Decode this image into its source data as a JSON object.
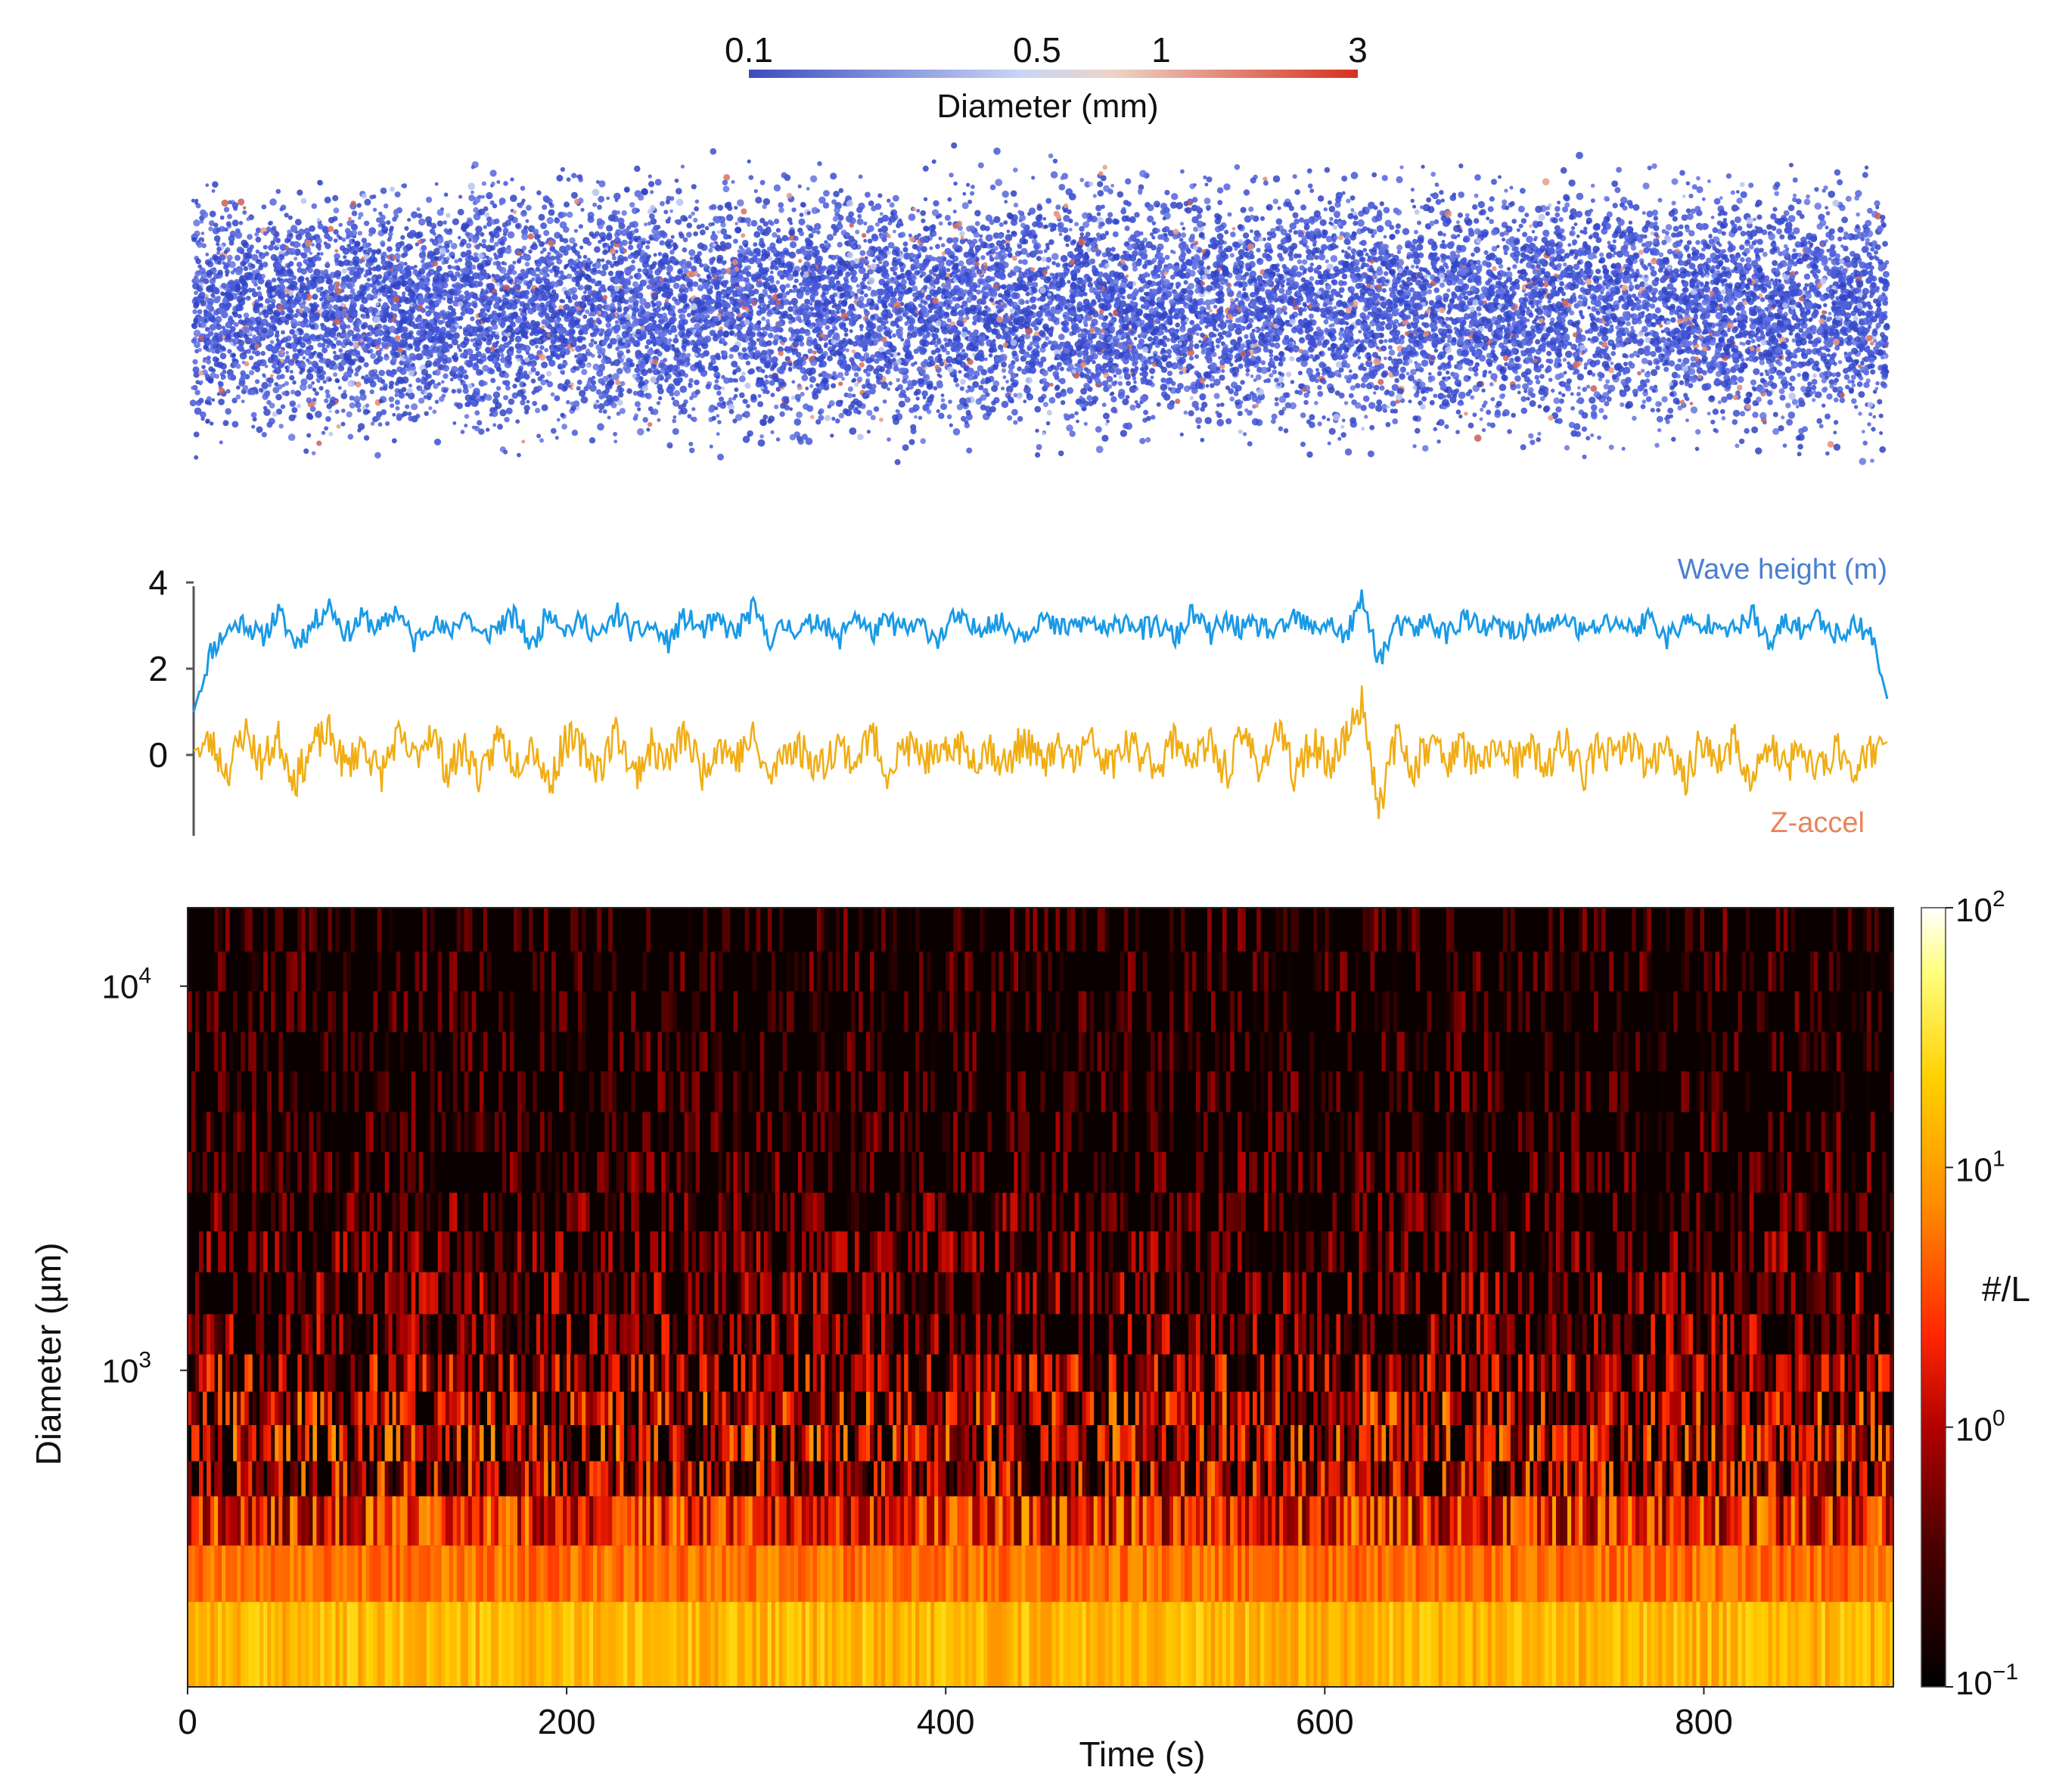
{
  "figure": {
    "panels": [
      "particle-cloud",
      "wave-timeseries",
      "size-spectrogram"
    ]
  },
  "chart_data": [
    {
      "type": "scatter",
      "panel": "particle-cloud",
      "colorbar": {
        "label": "Diameter (mm)",
        "ticks": [
          "0.1",
          "0.5",
          "1",
          "3"
        ],
        "tick_values": [
          0.1,
          0.5,
          1,
          3
        ],
        "scale": "log",
        "colors": [
          "#3b4cc0",
          "#c6d4f5",
          "#e9c1ad",
          "#d7301f"
        ]
      },
      "points": {
        "approx_count": 14000,
        "dominant_color": "#4455d6",
        "note_color_large": "#e0826a"
      }
    },
    {
      "type": "line",
      "panel": "wave-timeseries",
      "x_range": [
        0,
        900
      ],
      "ylim": [
        -1.8,
        4
      ],
      "yticks": [
        "4",
        "2",
        "0"
      ],
      "ytick_values": [
        4,
        2,
        0
      ],
      "series": [
        {
          "name": "Wave height (m)",
          "color": "#1a9ae6",
          "label_color": "#4a7fcf",
          "values": [
            1.0,
            2.4,
            2.9,
            3.1,
            2.7,
            3.3,
            2.6,
            3.0,
            3.5,
            2.8,
            3.2,
            2.9,
            3.4,
            2.6,
            3.1,
            2.8,
            3.3,
            2.7,
            3.0,
            3.2,
            2.5,
            3.4,
            2.9,
            3.1,
            2.7,
            3.3,
            2.8,
            3.0,
            2.6,
            3.2,
            2.9,
            3.1,
            2.8,
            3.4,
            2.7,
            3.0,
            2.9,
            3.2,
            2.6,
            3.3,
            2.8,
            3.1,
            2.9,
            3.0,
            2.7,
            3.2,
            2.9,
            3.1,
            3.0,
            2.8,
            3.2,
            2.9,
            3.0,
            3.1,
            2.8,
            3.2,
            2.9,
            3.0,
            2.7,
            3.3,
            2.8,
            3.1,
            2.9,
            3.0,
            2.8,
            3.2,
            2.9,
            3.1,
            2.7,
            3.6,
            2.2,
            3.0,
            2.9,
            3.1,
            2.8,
            3.2,
            2.9,
            3.0,
            2.8,
            3.1,
            2.9,
            3.2,
            2.8,
            3.0,
            3.1,
            2.9,
            3.2,
            2.7,
            3.1,
            2.9,
            3.2,
            2.8,
            3.3,
            2.5,
            3.1,
            2.9,
            3.2,
            2.8,
            3.0,
            2.9,
            1.3
          ]
        },
        {
          "name": "Z-accel",
          "color": "#f0ad14",
          "label_color": "#e8845a",
          "values": [
            0.1,
            0.3,
            -0.4,
            0.6,
            -0.2,
            0.4,
            -0.6,
            0.2,
            0.5,
            -0.3,
            0.3,
            -0.5,
            0.4,
            -0.1,
            0.6,
            -0.4,
            0.2,
            -0.6,
            0.5,
            -0.2,
            0.3,
            -0.7,
            0.4,
            0.1,
            -0.3,
            0.6,
            -0.5,
            0.2,
            -0.2,
            0.5,
            -0.4,
            0.3,
            -0.1,
            0.4,
            -0.6,
            0.2,
            0.1,
            -0.3,
            0.3,
            -0.2,
            0.5,
            -0.4,
            0.2,
            0.0,
            -0.2,
            0.3,
            -0.1,
            0.2,
            -0.3,
            0.4,
            -0.2,
            0.1,
            -0.1,
            0.3,
            -0.3,
            0.2,
            0.0,
            -0.2,
            0.4,
            -0.1,
            0.2,
            -0.4,
            0.5,
            -0.3,
            0.6,
            -0.5,
            0.3,
            -0.2,
            0.4,
            1.2,
            -1.2,
            0.4,
            -0.3,
            0.3,
            -0.1,
            0.2,
            -0.4,
            0.3,
            -0.2,
            0.1,
            -0.3,
            0.4,
            -0.5,
            0.2,
            -0.1,
            0.3,
            -0.4,
            0.5,
            -0.7,
            0.4,
            -0.2,
            0.3,
            -0.6,
            0.2,
            -0.3,
            0.1,
            -0.4,
            0.2,
            -0.3,
            0.1,
            0.3
          ]
        }
      ]
    },
    {
      "type": "heatmap",
      "panel": "size-spectrogram",
      "xlabel": "Time (s)",
      "ylabel": "Diameter (µm)",
      "xlim": [
        0,
        900
      ],
      "xticks": [
        0,
        200,
        400,
        600,
        800
      ],
      "xtick_labels": [
        "0",
        "200",
        "400",
        "600",
        "800"
      ],
      "ylim": [
        150,
        16000
      ],
      "yscale": "log",
      "yticks": [
        1000,
        10000
      ],
      "ytick_labels": [
        {
          "base": "10",
          "exp": "3"
        },
        {
          "base": "10",
          "exp": "4"
        }
      ],
      "y_bin_edges": [
        150,
        250,
        350,
        470,
        580,
        720,
        880,
        1100,
        1400,
        1800,
        2300,
        2900,
        3700,
        4700,
        6000,
        7600,
        9700,
        12300,
        16000
      ],
      "row_mean_log10_conc": [
        1.0,
        0.6,
        0.15,
        -0.05,
        0.05,
        0.0,
        -0.2,
        -0.45,
        -0.55,
        -0.65,
        -0.75,
        -0.85,
        -0.92,
        -0.97,
        -1.0,
        -1.0,
        -1.0,
        -1.0
      ],
      "colorbar": {
        "label": "#/L",
        "scale": "log",
        "range": [
          0.1,
          100
        ],
        "ticks": [
          {
            "base": "10",
            "exp": "−1"
          },
          {
            "base": "10",
            "exp": "0"
          },
          {
            "base": "10",
            "exp": "1"
          },
          {
            "base": "10",
            "exp": "2"
          }
        ],
        "colormap": [
          "#000000",
          "#5a0000",
          "#b00000",
          "#ff2a00",
          "#ff8c00",
          "#ffd000",
          "#ffff80",
          "#ffffff"
        ]
      }
    }
  ]
}
